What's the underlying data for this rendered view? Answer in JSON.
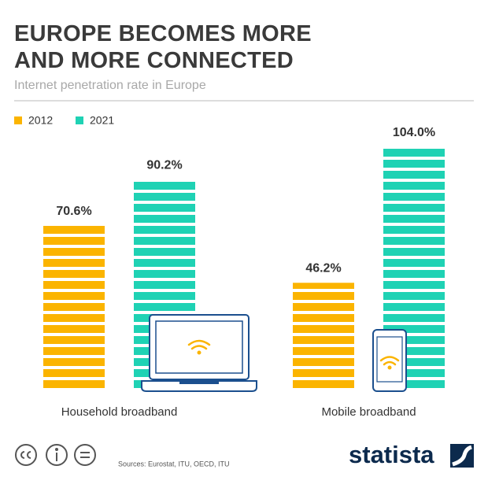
{
  "chart_data": {
    "type": "bar",
    "title": "EUROPE BECOMES MORE AND MORE CONNECTED",
    "subtitle": "Internet penetration rate in Europe",
    "categories": [
      "Household broadband",
      "Mobile broadband"
    ],
    "series": [
      {
        "name": "2012",
        "color": "#fbb400",
        "values": [
          70.6,
          46.2
        ],
        "value_labels": [
          "70.6%",
          "46.2%"
        ]
      },
      {
        "name": "2021",
        "color": "#1fd2b4",
        "values": [
          90.2,
          104.0
        ],
        "value_labels": [
          "90.2%",
          "104.0%"
        ]
      }
    ],
    "source": "Sources: Eurostat, ITU, OECD, ITU",
    "brand": "statista"
  }
}
